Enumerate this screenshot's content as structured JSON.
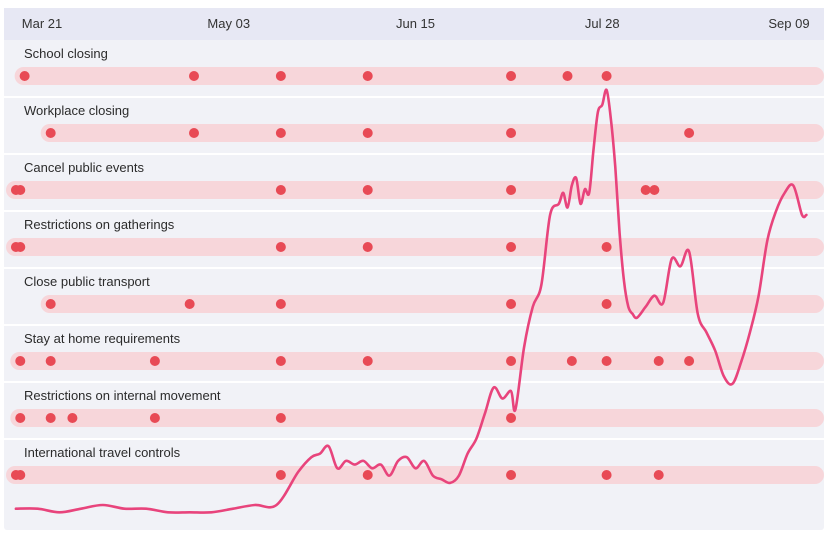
{
  "chart_data": {
    "type": "timeline",
    "x_ticks": [
      "Mar 21",
      "May 03",
      "Jun 15",
      "Jul 28",
      "Sep 09"
    ],
    "colors": {
      "line": "#e8447c",
      "dot": "#e84a55",
      "bar": "#f7d6da",
      "header": "#e7e8f4",
      "row_bg": "#f1f2f7"
    },
    "rows": [
      {
        "label": "School closing",
        "events": [
          "Mar 17",
          "Apr 25",
          "May 15",
          "Jun 04",
          "Jul 07",
          "Jul 20",
          "Jul 29"
        ]
      },
      {
        "label": "Workplace closing",
        "events": [
          "Mar 23",
          "Apr 25",
          "May 15",
          "Jun 04",
          "Jul 07",
          "Aug 17"
        ]
      },
      {
        "label": "Cancel public events",
        "events": [
          "Mar 15",
          "Mar 16",
          "May 15",
          "Jun 04",
          "Jul 07",
          "Aug 07",
          "Aug 09"
        ]
      },
      {
        "label": "Restrictions on gatherings",
        "events": [
          "Mar 15",
          "Mar 16",
          "May 15",
          "Jun 04",
          "Jul 07",
          "Jul 29"
        ]
      },
      {
        "label": "Close public transport",
        "events": [
          "Mar 23",
          "Apr 24",
          "May 15",
          "Jul 07",
          "Jul 29"
        ]
      },
      {
        "label": "Stay at home requirements",
        "events": [
          "Mar 16",
          "Mar 23",
          "Apr 16",
          "May 15",
          "Jun 04",
          "Jul 07",
          "Jul 21",
          "Jul 29",
          "Aug 10",
          "Aug 17"
        ]
      },
      {
        "label": "Restrictions on internal movement",
        "events": [
          "Mar 16",
          "Mar 23",
          "Mar 28",
          "Apr 16",
          "May 15",
          "Jul 07"
        ]
      },
      {
        "label": "International travel controls",
        "events": [
          "Mar 15",
          "Mar 16",
          "May 15",
          "Jun 04",
          "Jul 07",
          "Jul 29",
          "Aug 10"
        ]
      }
    ],
    "trend": {
      "x": [
        "Mar 15",
        "Mar 20",
        "Mar 25",
        "Mar 30",
        "Apr 4",
        "Apr 9",
        "Apr 14",
        "Apr 19",
        "Apr 24",
        "Apr 29",
        "May 4",
        "May 9",
        "May 14",
        "May 19",
        "May 22",
        "May 24",
        "May 26",
        "May 28",
        "May 30",
        "Jun 1",
        "Jun 3",
        "Jun 5",
        "Jun 7",
        "Jun 9",
        "Jun 11",
        "Jun 13",
        "Jun 15",
        "Jun 17",
        "Jun 19",
        "Jun 21",
        "Jun 23",
        "Jun 25",
        "Jun 27",
        "Jun 29",
        "Jul 1",
        "Jul 3",
        "Jul 5",
        "Jul 7",
        "Jul 8",
        "Jul 10",
        "Jul 12",
        "Jul 14",
        "Jul 16",
        "Jul 18",
        "Jul 19",
        "Jul 20",
        "Jul 21",
        "Jul 22",
        "Jul 23",
        "Jul 24",
        "Jul 25",
        "Jul 26",
        "Jul 27",
        "Jul 28",
        "Jul 29",
        "Jul 30",
        "Jul 31",
        "Aug 1",
        "Aug 2",
        "Aug 3",
        "Aug 4",
        "Aug 5",
        "Aug 7",
        "Aug 9",
        "Aug 11",
        "Aug 13",
        "Aug 15",
        "Aug 17",
        "Aug 19",
        "Aug 21",
        "Aug 23",
        "Aug 25",
        "Aug 27",
        "Aug 29",
        "Aug 31",
        "Sep 2",
        "Sep 4",
        "Sep 6",
        "Sep 8",
        "Sep 10",
        "Sep 12",
        "Sep 13"
      ],
      "y": [
        2,
        2,
        1,
        2,
        3,
        2,
        2,
        1,
        1,
        1,
        2,
        3,
        3,
        12,
        16,
        17,
        19,
        13,
        15,
        14,
        15,
        13,
        14,
        11,
        15,
        16,
        13,
        15,
        11,
        10,
        9,
        11,
        17,
        21,
        28,
        35,
        32,
        34,
        29,
        46,
        57,
        63,
        82,
        85,
        88,
        84,
        90,
        92,
        85,
        89,
        88,
        100,
        110,
        112,
        116,
        108,
        95,
        77,
        64,
        57,
        55,
        54,
        57,
        60,
        58,
        70,
        68,
        72,
        55,
        50,
        45,
        38,
        36,
        42,
        50,
        60,
        75,
        83,
        88,
        90,
        82,
        82
      ]
    }
  }
}
